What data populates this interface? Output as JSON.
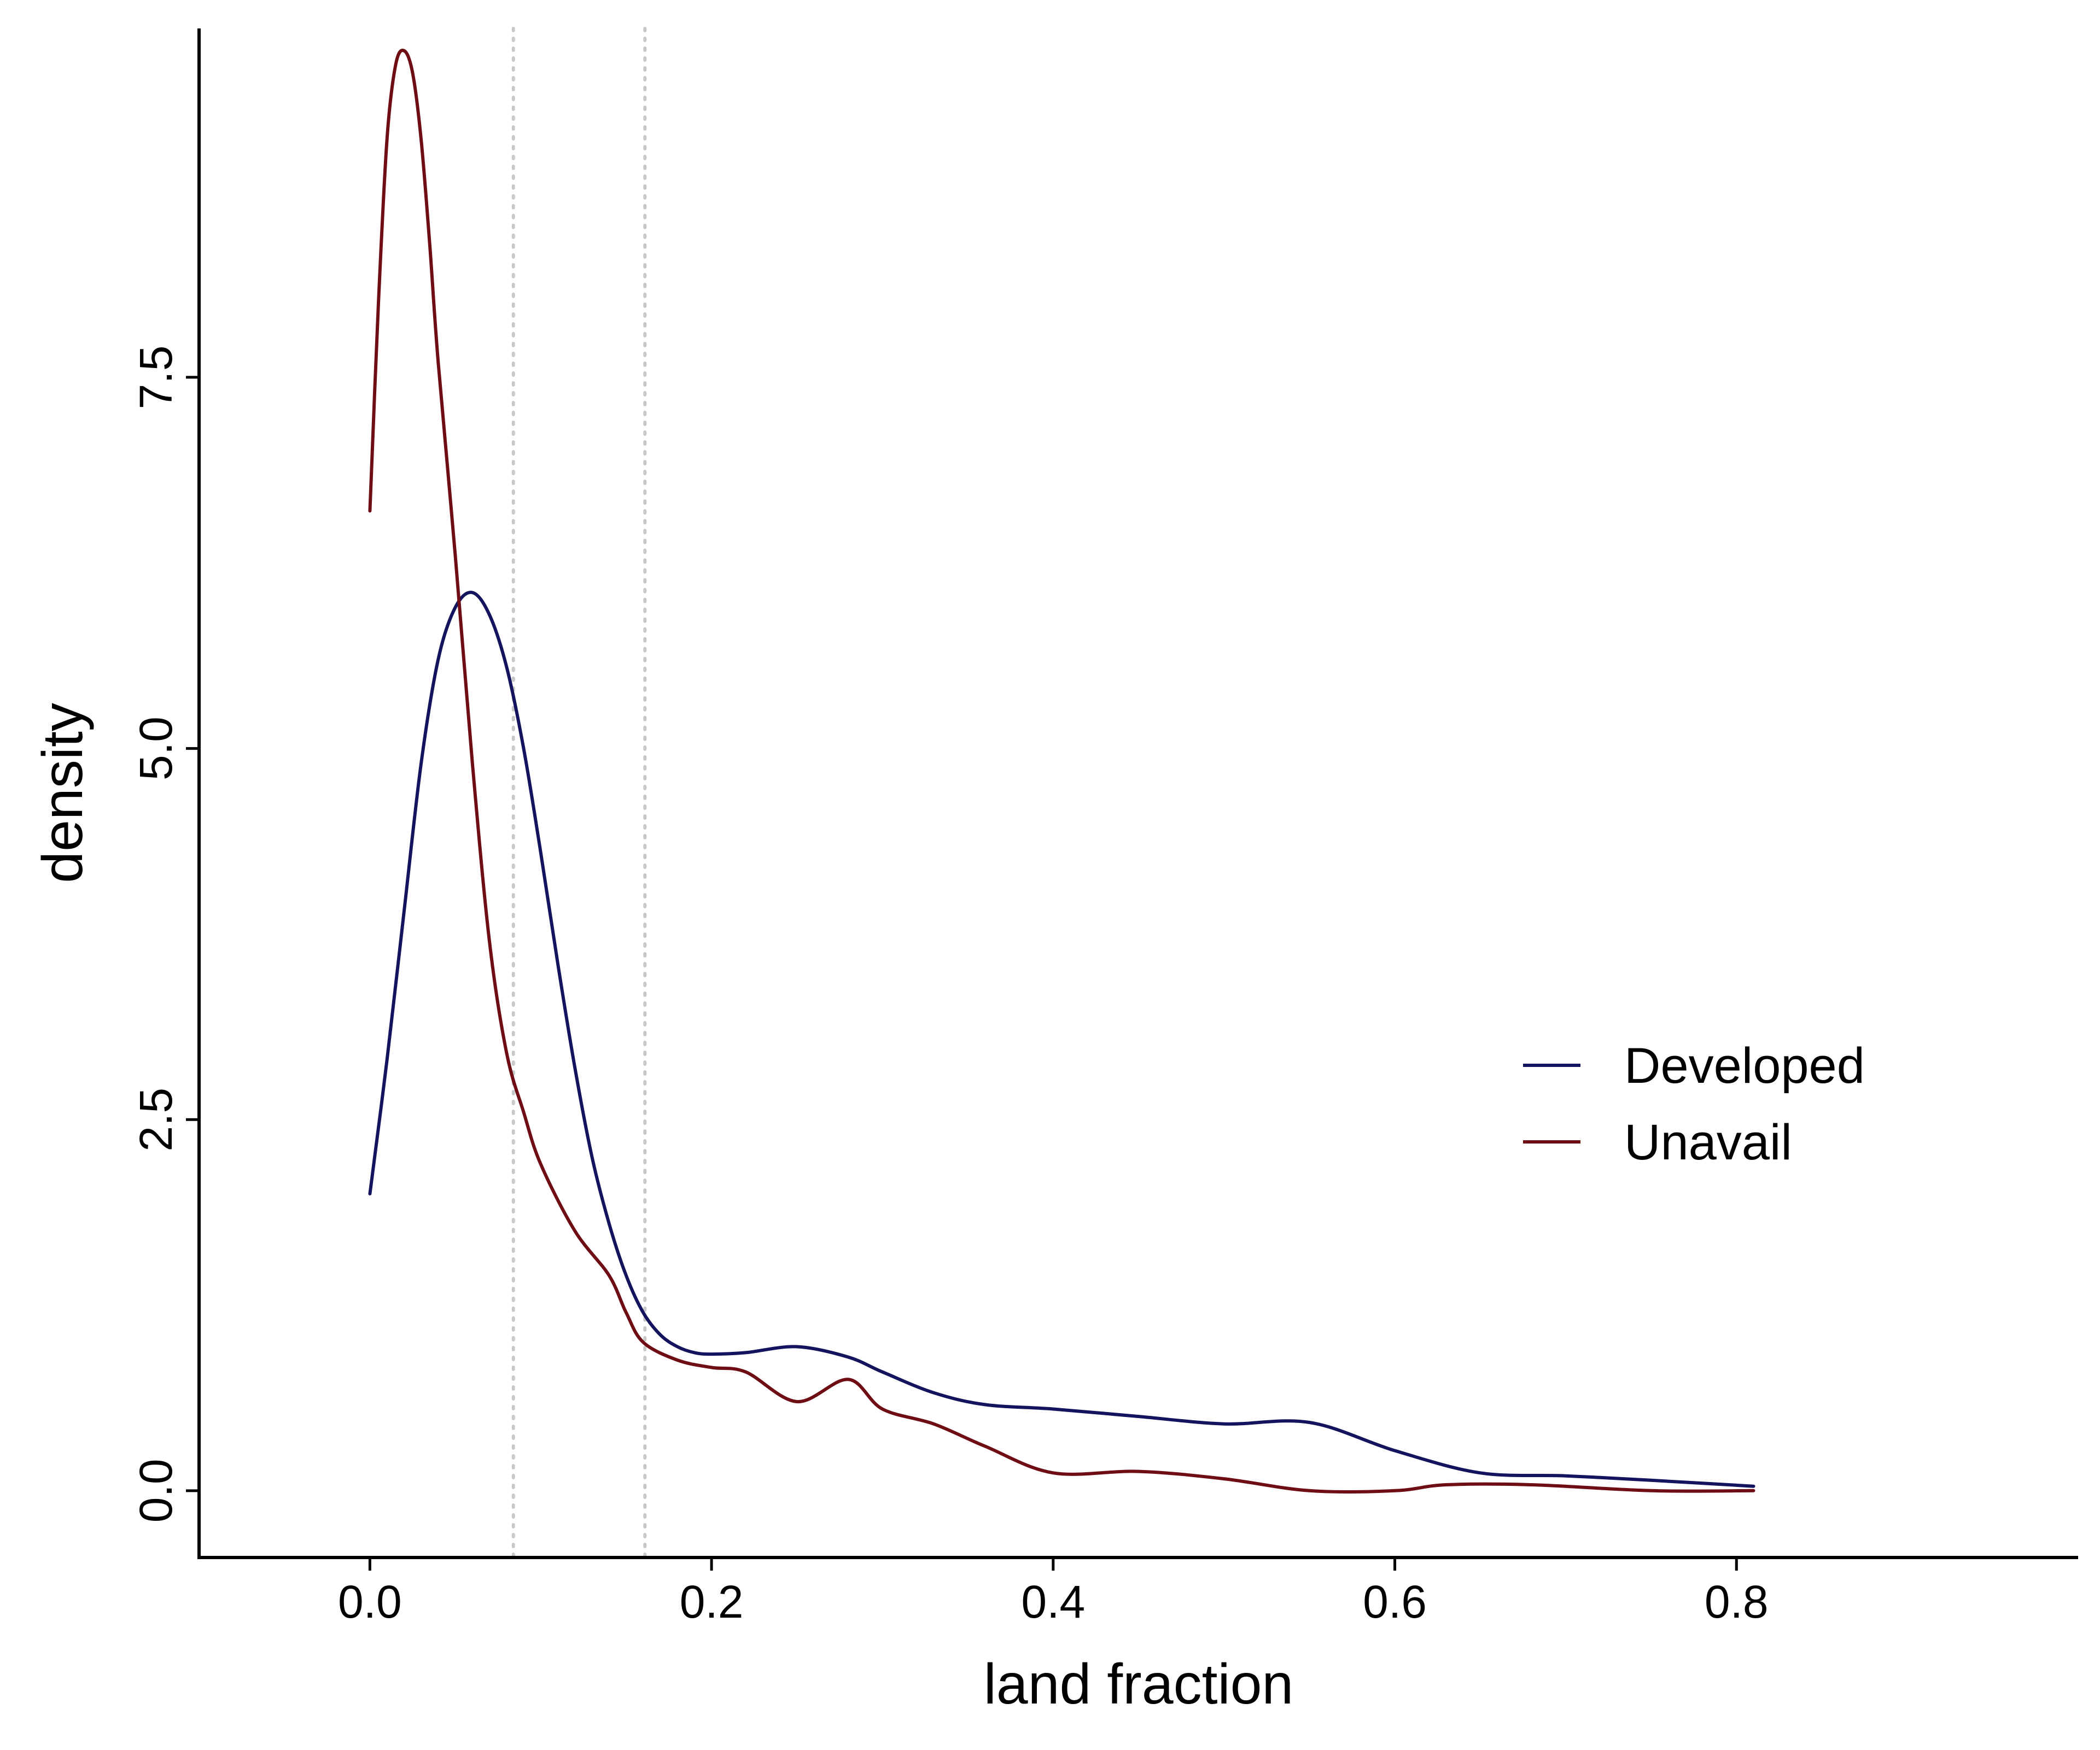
{
  "chart_data": {
    "type": "line",
    "xlabel": "land fraction",
    "ylabel": "density",
    "xlim": [
      -0.1,
      1.0
    ],
    "ylim": [
      -0.45,
      9.85
    ],
    "xticks": [
      0.0,
      0.2,
      0.4,
      0.6,
      0.8
    ],
    "xtick_labels": [
      "0.0",
      "0.2",
      "0.4",
      "0.6",
      "0.8"
    ],
    "yticks": [
      0.0,
      2.5,
      5.0,
      7.5
    ],
    "ytick_labels": [
      "0.0",
      "2.5",
      "5.0",
      "7.5"
    ],
    "grid": false,
    "legend_position": "right",
    "reference_lines_x": [
      0.084,
      0.161
    ],
    "series": [
      {
        "name": "Developed",
        "color": "#14145e",
        "x": [
          0.0,
          0.01,
          0.02,
          0.03,
          0.04,
          0.05,
          0.06,
          0.07,
          0.08,
          0.09,
          0.1,
          0.11,
          0.12,
          0.13,
          0.14,
          0.15,
          0.16,
          0.17,
          0.18,
          0.19,
          0.2,
          0.22,
          0.25,
          0.28,
          0.3,
          0.33,
          0.36,
          0.4,
          0.45,
          0.5,
          0.55,
          0.6,
          0.65,
          0.7,
          0.75,
          0.81
        ],
        "y": [
          2.0,
          2.9,
          3.9,
          4.9,
          5.6,
          5.95,
          6.05,
          5.9,
          5.55,
          5.0,
          4.3,
          3.55,
          2.85,
          2.25,
          1.8,
          1.45,
          1.2,
          1.05,
          0.97,
          0.93,
          0.92,
          0.93,
          0.97,
          0.9,
          0.8,
          0.66,
          0.58,
          0.55,
          0.5,
          0.45,
          0.46,
          0.27,
          0.12,
          0.1,
          0.07,
          0.03
        ]
      },
      {
        "name": "Unavail",
        "color": "#6e0e14",
        "x": [
          0.0,
          0.005,
          0.01,
          0.015,
          0.02,
          0.025,
          0.03,
          0.035,
          0.04,
          0.05,
          0.06,
          0.07,
          0.08,
          0.09,
          0.1,
          0.12,
          0.14,
          0.15,
          0.16,
          0.18,
          0.2,
          0.22,
          0.25,
          0.28,
          0.3,
          0.33,
          0.36,
          0.4,
          0.45,
          0.5,
          0.55,
          0.6,
          0.63,
          0.68,
          0.75,
          0.81
        ],
        "y": [
          6.6,
          8.0,
          9.1,
          9.6,
          9.7,
          9.55,
          9.1,
          8.4,
          7.6,
          6.3,
          4.9,
          3.7,
          2.95,
          2.55,
          2.2,
          1.75,
          1.45,
          1.2,
          1.0,
          0.88,
          0.83,
          0.8,
          0.6,
          0.75,
          0.55,
          0.45,
          0.3,
          0.12,
          0.13,
          0.08,
          0.0,
          0.0,
          0.04,
          0.04,
          0.0,
          0.0
        ]
      }
    ]
  }
}
